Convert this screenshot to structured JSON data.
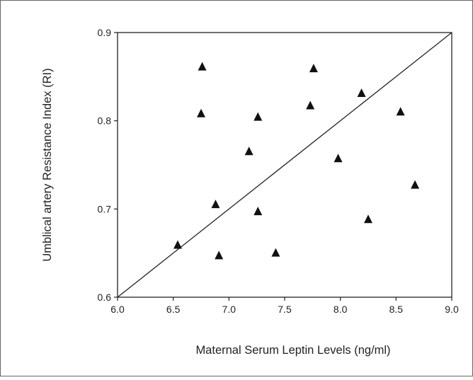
{
  "chart_data": {
    "type": "scatter",
    "title": "",
    "xlabel": "Maternal Serum Leptin Levels (ng/ml)",
    "ylabel": "Umblical artery Resistance Index (RI)",
    "xlim": [
      6.0,
      9.0
    ],
    "ylim": [
      0.6,
      0.9
    ],
    "x_ticks": [
      "6.0",
      "6.5",
      "7.0",
      "7.5",
      "8.0",
      "8.5",
      "9.0"
    ],
    "y_ticks": [
      "0.6",
      "0.7",
      "0.8",
      "0.9"
    ],
    "grid": false,
    "marker": "triangle",
    "marker_color": "#111111",
    "series": [
      {
        "points": [
          {
            "x": 6.54,
            "y": 0.659
          },
          {
            "x": 6.75,
            "y": 0.808
          },
          {
            "x": 6.76,
            "y": 0.861
          },
          {
            "x": 6.88,
            "y": 0.705
          },
          {
            "x": 6.91,
            "y": 0.647
          },
          {
            "x": 7.18,
            "y": 0.765
          },
          {
            "x": 7.26,
            "y": 0.697
          },
          {
            "x": 7.26,
            "y": 0.804
          },
          {
            "x": 7.42,
            "y": 0.65
          },
          {
            "x": 7.73,
            "y": 0.817
          },
          {
            "x": 7.76,
            "y": 0.859
          },
          {
            "x": 7.98,
            "y": 0.757
          },
          {
            "x": 8.19,
            "y": 0.831
          },
          {
            "x": 8.25,
            "y": 0.688
          },
          {
            "x": 8.54,
            "y": 0.81
          },
          {
            "x": 8.67,
            "y": 0.727
          }
        ]
      }
    ],
    "reference_line": {
      "from": [
        6.0,
        0.6
      ],
      "to": [
        9.0,
        0.9
      ]
    }
  }
}
